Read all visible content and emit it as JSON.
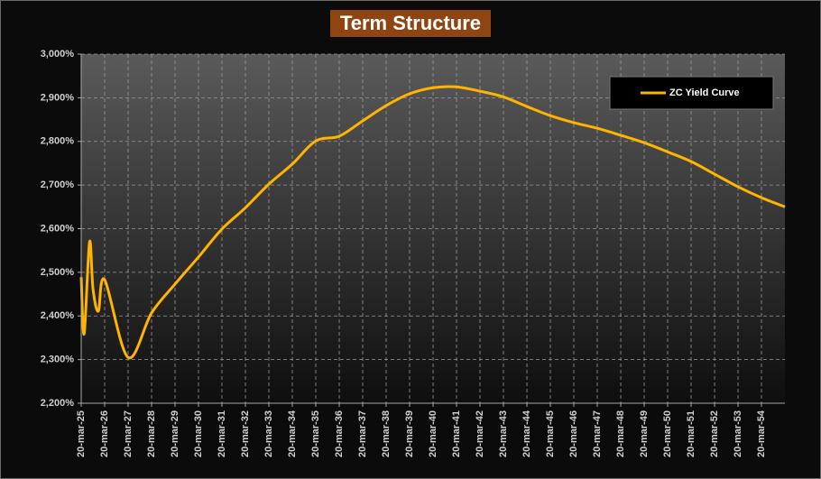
{
  "chart_data": {
    "type": "line",
    "title": "Term Structure",
    "x": [
      "2025-03-20",
      "2025-05-05",
      "2025-07-28",
      "2025-09-20",
      "2025-12-12",
      "2026-03-20",
      "2027-03-20",
      "2028-03-20",
      "2029-03-20",
      "2030-03-20",
      "2031-03-20",
      "2032-03-20",
      "2033-03-20",
      "2034-03-20",
      "2035-03-20",
      "2036-03-20",
      "2037-03-20",
      "2038-03-20",
      "2039-03-20",
      "2040-03-20",
      "2041-03-20",
      "2042-03-20",
      "2043-03-20",
      "2044-03-20",
      "2045-03-20",
      "2046-03-20",
      "2047-03-20",
      "2048-03-20",
      "2049-03-20",
      "2050-03-20",
      "2051-03-20",
      "2052-03-20",
      "2053-03-20",
      "2054-03-20",
      "2055-03-20"
    ],
    "series": [
      {
        "name": "ZC Yield Curve",
        "color": "#ffb400",
        "values": [
          2.489,
          2.359,
          2.57,
          2.462,
          2.411,
          2.483,
          2.305,
          2.407,
          2.473,
          2.535,
          2.599,
          2.648,
          2.702,
          2.748,
          2.801,
          2.812,
          2.847,
          2.882,
          2.909,
          2.923,
          2.925,
          2.915,
          2.902,
          2.88,
          2.859,
          2.843,
          2.83,
          2.814,
          2.797,
          2.776,
          2.754,
          2.725,
          2.696,
          2.671,
          2.65
        ]
      }
    ],
    "xlim": [
      "2025-03-20",
      "2055-03-20"
    ],
    "xticks": [
      {
        "value": "2025-03-20",
        "label": "20-mar-25"
      },
      {
        "value": "2026-03-20",
        "label": "20-mar-26"
      },
      {
        "value": "2027-03-20",
        "label": "20-mar-27"
      },
      {
        "value": "2028-03-20",
        "label": "20-mar-28"
      },
      {
        "value": "2029-03-20",
        "label": "20-mar-29"
      },
      {
        "value": "2030-03-20",
        "label": "20-mar-30"
      },
      {
        "value": "2031-03-20",
        "label": "20-mar-31"
      },
      {
        "value": "2032-03-20",
        "label": "20-mar-32"
      },
      {
        "value": "2033-03-20",
        "label": "20-mar-33"
      },
      {
        "value": "2034-03-20",
        "label": "20-mar-34"
      },
      {
        "value": "2035-03-20",
        "label": "20-mar-35"
      },
      {
        "value": "2036-03-20",
        "label": "20-mar-36"
      },
      {
        "value": "2037-03-20",
        "label": "20-mar-37"
      },
      {
        "value": "2038-03-20",
        "label": "20-mar-38"
      },
      {
        "value": "2039-03-20",
        "label": "20-mar-39"
      },
      {
        "value": "2040-03-20",
        "label": "20-mar-40"
      },
      {
        "value": "2041-03-20",
        "label": "20-mar-41"
      },
      {
        "value": "2042-03-20",
        "label": "20-mar-42"
      },
      {
        "value": "2043-03-20",
        "label": "20-mar-43"
      },
      {
        "value": "2044-03-20",
        "label": "20-mar-44"
      },
      {
        "value": "2045-03-20",
        "label": "20-mar-45"
      },
      {
        "value": "2046-03-20",
        "label": "20-mar-46"
      },
      {
        "value": "2047-03-20",
        "label": "20-mar-47"
      },
      {
        "value": "2048-03-20",
        "label": "20-mar-48"
      },
      {
        "value": "2049-03-20",
        "label": "20-mar-49"
      },
      {
        "value": "2050-03-20",
        "label": "20-mar-50"
      },
      {
        "value": "2051-03-20",
        "label": "20-mar-51"
      },
      {
        "value": "2052-03-20",
        "label": "20-mar-52"
      },
      {
        "value": "2053-03-20",
        "label": "20-mar-53"
      },
      {
        "value": "2054-03-20",
        "label": "20-mar-54"
      }
    ],
    "ylim": [
      2.2,
      3.0
    ],
    "yticks": [
      {
        "value": 2.2,
        "label": "2,200%"
      },
      {
        "value": 2.3,
        "label": "2,300%"
      },
      {
        "value": 2.4,
        "label": "2,400%"
      },
      {
        "value": 2.5,
        "label": "2,500%"
      },
      {
        "value": 2.6,
        "label": "2,600%"
      },
      {
        "value": 2.7,
        "label": "2,700%"
      },
      {
        "value": 2.8,
        "label": "2,800%"
      },
      {
        "value": 2.9,
        "label": "2,900%"
      },
      {
        "value": 3.0,
        "label": "3,000%"
      }
    ],
    "grid": true,
    "legend": "top-right"
  }
}
